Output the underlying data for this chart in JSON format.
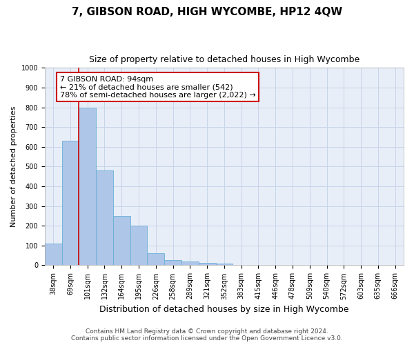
{
  "title": "7, GIBSON ROAD, HIGH WYCOMBE, HP12 4QW",
  "subtitle": "Size of property relative to detached houses in High Wycombe",
  "xlabel": "Distribution of detached houses by size in High Wycombe",
  "ylabel": "Number of detached properties",
  "footer_line1": "Contains HM Land Registry data © Crown copyright and database right 2024.",
  "footer_line2": "Contains public sector information licensed under the Open Government Licence v3.0.",
  "annotation_title": "7 GIBSON ROAD: 94sqm",
  "annotation_line1": "← 21% of detached houses are smaller (542)",
  "annotation_line2": "78% of semi-detached houses are larger (2,022) →",
  "property_size": 94,
  "bar_color": "#aec6e8",
  "bar_edge_color": "#6aaed6",
  "vline_color": "#cc0000",
  "annotation_box_color": "#cc0000",
  "categories": [
    "38sqm",
    "69sqm",
    "101sqm",
    "132sqm",
    "164sqm",
    "195sqm",
    "226sqm",
    "258sqm",
    "289sqm",
    "321sqm",
    "352sqm",
    "383sqm",
    "415sqm",
    "446sqm",
    "478sqm",
    "509sqm",
    "540sqm",
    "572sqm",
    "603sqm",
    "635sqm",
    "666sqm"
  ],
  "values": [
    110,
    630,
    800,
    480,
    250,
    200,
    60,
    25,
    18,
    12,
    10,
    0,
    0,
    0,
    0,
    0,
    0,
    0,
    0,
    0,
    0
  ],
  "ylim": [
    0,
    1000
  ],
  "yticks": [
    0,
    100,
    200,
    300,
    400,
    500,
    600,
    700,
    800,
    900,
    1000
  ],
  "background_color": "#ffffff",
  "plot_bg_color": "#e8eef8",
  "grid_color": "#c8d4e8",
  "title_fontsize": 11,
  "subtitle_fontsize": 9,
  "ylabel_fontsize": 8,
  "xlabel_fontsize": 9,
  "tick_fontsize": 7,
  "footer_fontsize": 6.5,
  "annotation_fontsize": 8,
  "vline_x_index": 1.5
}
